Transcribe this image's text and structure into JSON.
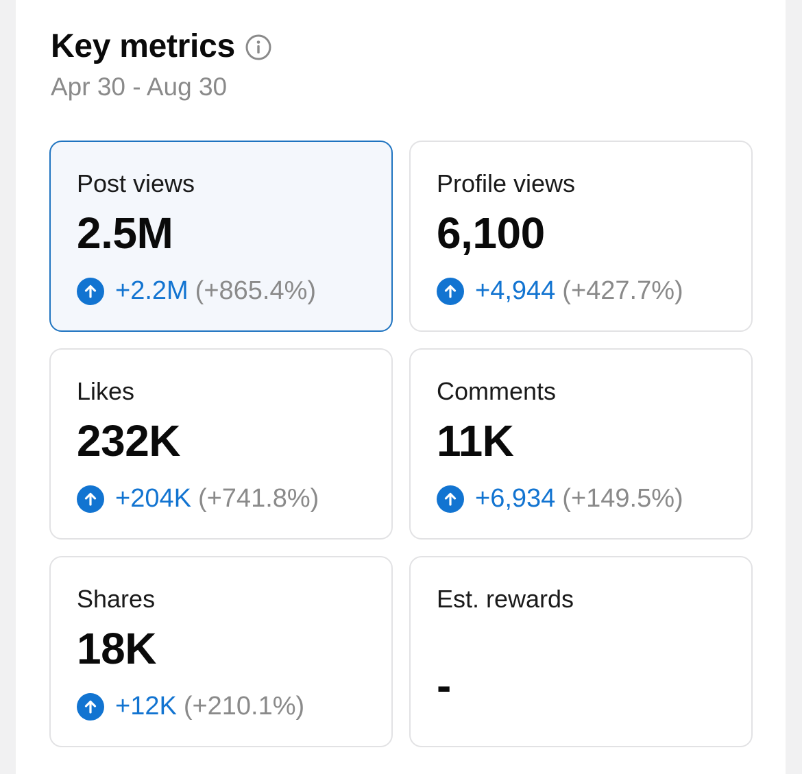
{
  "header": {
    "title": "Key metrics",
    "date_range": "Apr 30 - Aug 30",
    "info_icon": "info-circle-icon"
  },
  "colors": {
    "accent": "#1274d1",
    "selected_border": "#1e73c0",
    "selected_bg": "#f4f7fc",
    "muted": "#8a8a8a"
  },
  "metrics": [
    {
      "label": "Post views",
      "value": "2.5M",
      "delta": "+2.2M",
      "pct": "(+865.4%)",
      "icon": "arrow-up-circle-icon"
    },
    {
      "label": "Profile views",
      "value": "6,100",
      "delta": "+4,944",
      "pct": "(+427.7%)",
      "icon": "arrow-up-circle-icon"
    },
    {
      "label": "Likes",
      "value": "232K",
      "delta": "+204K",
      "pct": "(+741.8%)",
      "icon": "arrow-up-circle-icon"
    },
    {
      "label": "Comments",
      "value": "11K",
      "delta": "+6,934",
      "pct": "(+149.5%)",
      "icon": "arrow-up-circle-icon"
    },
    {
      "label": "Shares",
      "value": "18K",
      "delta": "+12K",
      "pct": "(+210.1%)",
      "icon": "arrow-up-circle-icon"
    },
    {
      "label": "Est. rewards",
      "value": "-"
    }
  ]
}
